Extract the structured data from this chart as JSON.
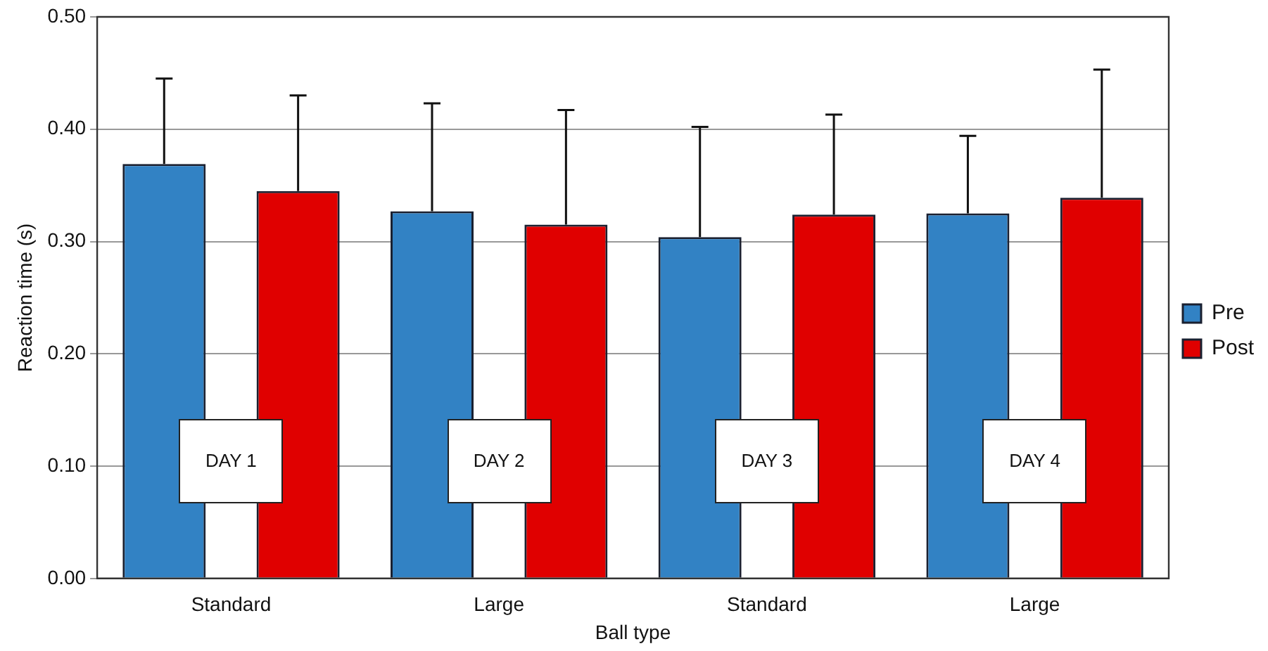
{
  "chart_data": {
    "type": "bar",
    "xlabel": "Ball type",
    "ylabel": "Reaction time (s)",
    "categories": [
      "Standard",
      "Large",
      "Standard",
      "Large"
    ],
    "series": [
      {
        "name": "Pre",
        "color": "#3282c4",
        "values": [
          0.369,
          0.327,
          0.304,
          0.325
        ],
        "errors": [
          [
            0.369,
            0.445
          ],
          [
            0.327,
            0.423
          ],
          [
            0.304,
            0.402
          ],
          [
            0.325,
            0.394
          ]
        ]
      },
      {
        "name": "Post",
        "color": "#e00000",
        "values": [
          0.345,
          0.315,
          0.324,
          0.339
        ],
        "errors": [
          [
            0.345,
            0.43
          ],
          [
            0.315,
            0.417
          ],
          [
            0.324,
            0.413
          ],
          [
            0.339,
            0.453
          ]
        ]
      }
    ],
    "ylim": [
      0,
      0.5
    ],
    "yticks": [
      {
        "value": 0,
        "label": "0.00"
      },
      {
        "value": 0.1,
        "label": "0.10"
      },
      {
        "value": 0.2,
        "label": "0.20"
      },
      {
        "value": 0.3,
        "label": "0.30"
      },
      {
        "value": 0.4,
        "label": "0.40"
      },
      {
        "value": 0.5,
        "label": "0.50"
      }
    ],
    "grid": "y",
    "legend": "right",
    "annotations": [
      "DAY 1",
      "DAY 2",
      "DAY 3",
      "DAY 4"
    ]
  }
}
